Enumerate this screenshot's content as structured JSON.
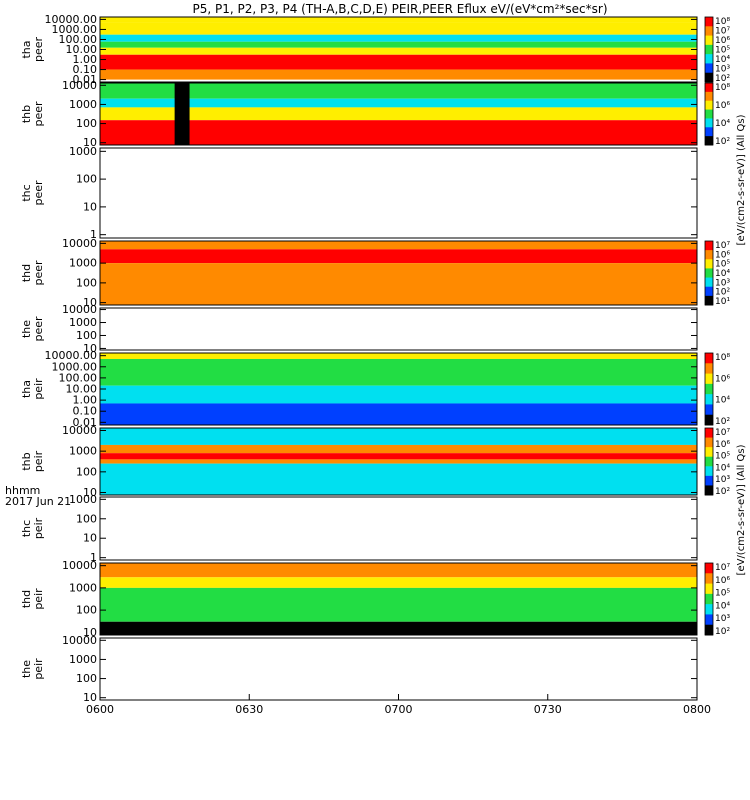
{
  "title": "P5, P1, P2, P3, P4 (TH-A,B,C,D,E) PEIR,PEER Eflux eV/(eV*cm²*sec*sr)",
  "time_axis": {
    "ticks": [
      "0600",
      "0630",
      "0700",
      "0730",
      "0800"
    ],
    "label": "hhmm",
    "date": "2017 Jun 21"
  },
  "colorbar_units": {
    "peer": "[eV/(cm2-s-sr-eV)] (All Qs)",
    "peir": "[eV/(cm2-s-sr-eV)] (All Qs)"
  },
  "colors": {
    "high": "#ff0000",
    "orange": "#ff8a00",
    "yellow": "#ffee00",
    "green": "#22dd44",
    "cyan": "#00e0f0",
    "blue": "#0040ff",
    "dark": "#000000"
  },
  "chart_data": [
    {
      "type": "heatmap",
      "probe": "tha",
      "species": "peer",
      "ylabel_line1": "tha",
      "ylabel_line2": "peer",
      "scale": "log",
      "y_ticks": [
        "10000.00",
        "1000.00",
        "100.00",
        "10.00",
        "1.00",
        "0.10",
        "0.01"
      ],
      "cbar_ticks": [
        "10⁸",
        "10⁷",
        "10⁶",
        "10⁵",
        "10⁴",
        "10³",
        "10²"
      ],
      "bands": [
        {
          "ylo": 5000,
          "yhi": 20000,
          "color": "yellow"
        },
        {
          "ylo": 300,
          "yhi": 5000,
          "color": "yellow"
        },
        {
          "ylo": 60,
          "yhi": 300,
          "color": "cyan"
        },
        {
          "ylo": 15,
          "yhi": 60,
          "color": "green"
        },
        {
          "ylo": 3,
          "yhi": 15,
          "color": "yellow"
        },
        {
          "ylo": 0.1,
          "yhi": 3,
          "color": "high"
        },
        {
          "ylo": 0.01,
          "yhi": 0.1,
          "color": "orange"
        }
      ]
    },
    {
      "type": "heatmap",
      "probe": "thb",
      "species": "peer",
      "ylabel_line1": "thb",
      "ylabel_line2": "peer",
      "scale": "log",
      "y_ticks": [
        "10000",
        "1000",
        "100",
        "10"
      ],
      "cbar_ticks": [
        "10⁸",
        "10⁶",
        "10⁴",
        "10²"
      ],
      "bands": [
        {
          "ylo": 2000,
          "yhi": 30000,
          "color": "green"
        },
        {
          "ylo": 700,
          "yhi": 2000,
          "color": "cyan"
        },
        {
          "ylo": 150,
          "yhi": 700,
          "color": "yellow"
        },
        {
          "ylo": 8,
          "yhi": 150,
          "color": "high"
        }
      ],
      "events": [
        {
          "t_start": "0615",
          "t_end": "0618",
          "color": "dark"
        }
      ]
    },
    {
      "type": "heatmap",
      "probe": "thc",
      "species": "peer",
      "ylabel_line1": "thc",
      "ylabel_line2": "peer",
      "scale": "log",
      "y_ticks": [
        "1000",
        "100",
        "10",
        "1"
      ],
      "empty": true
    },
    {
      "type": "heatmap",
      "probe": "thd",
      "species": "peer",
      "ylabel_line1": "thd",
      "ylabel_line2": "peer",
      "scale": "log",
      "y_ticks": [
        "10000",
        "1000",
        "100",
        "10"
      ],
      "cbar_ticks": [
        "10⁷",
        "10⁶",
        "10⁵",
        "10⁴",
        "10³",
        "10²",
        "10¹"
      ],
      "bands": [
        {
          "ylo": 5000,
          "yhi": 30000,
          "color": "orange"
        },
        {
          "ylo": 1000,
          "yhi": 5000,
          "color": "high"
        },
        {
          "ylo": 8,
          "yhi": 1000,
          "color": "orange"
        }
      ]
    },
    {
      "type": "heatmap",
      "probe": "the",
      "species": "peer",
      "ylabel_line1": "the",
      "ylabel_line2": "peer",
      "scale": "log",
      "y_ticks": [
        "10000",
        "1000",
        "100",
        "10"
      ],
      "empty": true
    },
    {
      "type": "heatmap",
      "probe": "tha",
      "species": "peir",
      "ylabel_line1": "tha",
      "ylabel_line2": "peir",
      "scale": "log",
      "y_ticks": [
        "10000.00",
        "1000.00",
        "100.00",
        "10.00",
        "1.00",
        "0.10",
        "0.01"
      ],
      "cbar_ticks": [
        "10⁸",
        "10⁶",
        "10⁴",
        "10²"
      ],
      "bands": [
        {
          "ylo": 5000,
          "yhi": 50000,
          "color": "yellow"
        },
        {
          "ylo": 20,
          "yhi": 5000,
          "color": "green"
        },
        {
          "ylo": 0.5,
          "yhi": 20,
          "color": "cyan"
        },
        {
          "ylo": 0.005,
          "yhi": 0.5,
          "color": "blue"
        }
      ]
    },
    {
      "type": "heatmap",
      "probe": "thb",
      "species": "peir",
      "ylabel_line1": "thb",
      "ylabel_line2": "peir",
      "scale": "log",
      "y_ticks": [
        "10000",
        "1000",
        "100",
        "10"
      ],
      "cbar_ticks": [
        "10⁷",
        "10⁶",
        "10⁵",
        "10⁴",
        "10³",
        "10²"
      ],
      "bands": [
        {
          "ylo": 2000,
          "yhi": 40000,
          "color": "cyan"
        },
        {
          "ylo": 800,
          "yhi": 2000,
          "color": "orange"
        },
        {
          "ylo": 400,
          "yhi": 800,
          "color": "high"
        },
        {
          "ylo": 250,
          "yhi": 400,
          "color": "orange"
        },
        {
          "ylo": 6,
          "yhi": 250,
          "color": "cyan"
        }
      ]
    },
    {
      "type": "heatmap",
      "probe": "thc",
      "species": "peir",
      "ylabel_line1": "thc",
      "ylabel_line2": "peir",
      "scale": "log",
      "y_ticks": [
        "1000",
        "100",
        "10",
        "1"
      ],
      "empty": true
    },
    {
      "type": "heatmap",
      "probe": "thd",
      "species": "peir",
      "ylabel_line1": "thd",
      "ylabel_line2": "peir",
      "scale": "log",
      "y_ticks": [
        "10000",
        "1000",
        "100",
        "10"
      ],
      "cbar_ticks": [
        "10⁷",
        "10⁶",
        "10⁵",
        "10⁴",
        "10³",
        "10²"
      ],
      "bands": [
        {
          "ylo": 3000,
          "yhi": 40000,
          "color": "orange"
        },
        {
          "ylo": 1000,
          "yhi": 3000,
          "color": "yellow"
        },
        {
          "ylo": 30,
          "yhi": 1000,
          "color": "green"
        },
        {
          "ylo": 6,
          "yhi": 30,
          "color": "dark"
        }
      ]
    },
    {
      "type": "heatmap",
      "probe": "the",
      "species": "peir",
      "ylabel_line1": "the",
      "ylabel_line2": "peir",
      "scale": "log",
      "y_ticks": [
        "10000",
        "1000",
        "100",
        "10"
      ],
      "empty": true
    }
  ]
}
